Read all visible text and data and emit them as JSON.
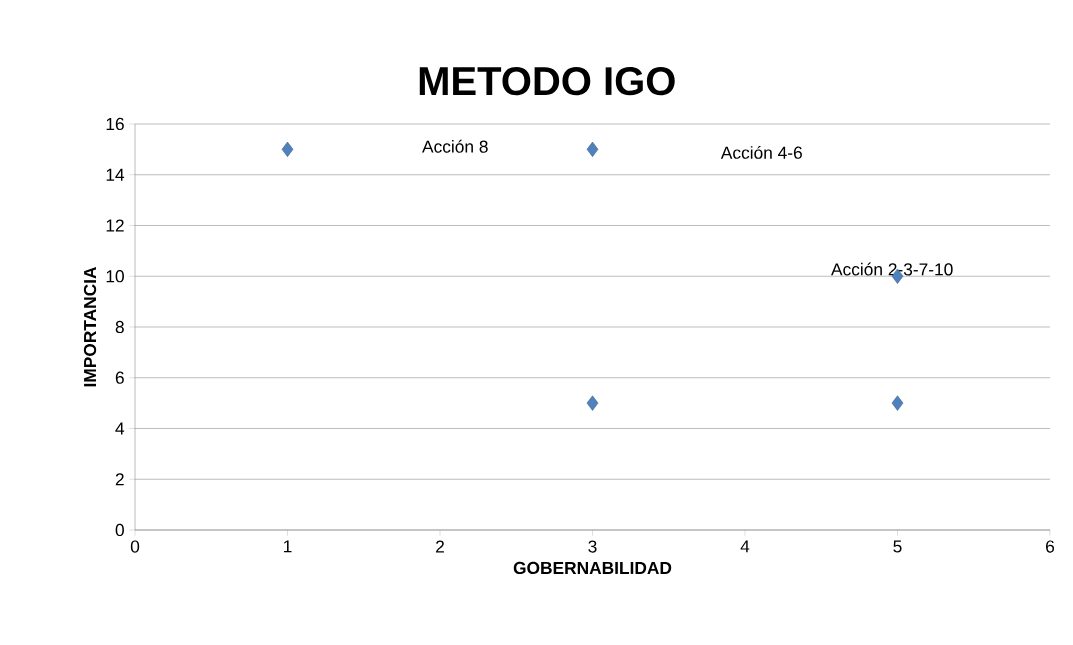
{
  "chart_data": {
    "type": "scatter",
    "title": "METODO IGO",
    "xlabel": "GOBERNABILIDAD",
    "ylabel": "IMPORTANCIA",
    "series": [
      {
        "color": "#4f81bd",
        "x": [
          1,
          3,
          3,
          5,
          5
        ],
        "values": [
          15,
          15,
          5,
          10,
          5
        ]
      }
    ],
    "xlim": [
      0,
      6
    ],
    "xticks": [
      0,
      1,
      2,
      3,
      4,
      5,
      6
    ],
    "ylim": [
      0,
      16
    ],
    "yticks": [
      0,
      2,
      4,
      6,
      8,
      10,
      12,
      14,
      16
    ],
    "grid": "y",
    "marker": "diamond",
    "annotations": [
      "Acción  8",
      "Acción  4-6",
      {
        "text": "Acción  2-3-7-10",
        "x": 5,
        "y": 10
      }
    ]
  }
}
